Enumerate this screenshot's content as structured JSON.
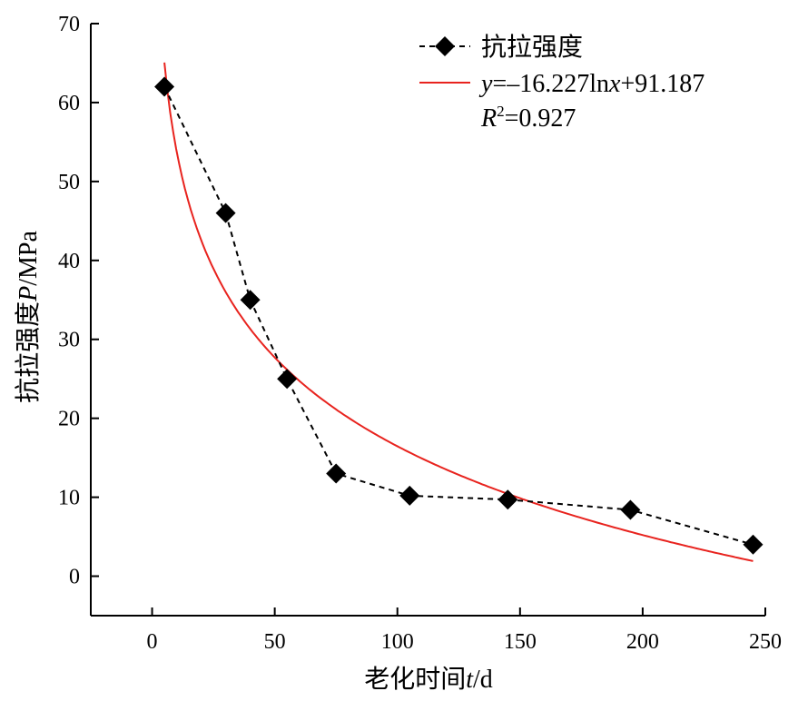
{
  "chart_data": {
    "type": "scatter",
    "xlabel": {
      "prefix": "老化时间",
      "var": "t",
      "unit": "/d"
    },
    "ylabel": {
      "prefix": "抗拉强度",
      "var": "P",
      "unit": "/MPa"
    },
    "xlim": [
      -25,
      250
    ],
    "ylim": [
      -5,
      70
    ],
    "xticks": [
      0,
      50,
      100,
      150,
      200,
      250
    ],
    "yticks": [
      0,
      10,
      20,
      30,
      40,
      50,
      60,
      70
    ],
    "grid": false,
    "legend_position": "top-right",
    "series": [
      {
        "name": "抗拉强度",
        "style": "dashed-line-diamond-markers",
        "color": "#000000",
        "x": [
          5,
          30,
          40,
          55,
          75,
          105,
          145,
          195,
          245
        ],
        "y": [
          62,
          46,
          35,
          25,
          13,
          10.2,
          9.7,
          8.4,
          4
        ]
      },
      {
        "name": "y=–16.227lnx+91.187",
        "style": "solid-fit-line",
        "color": "#e8231e",
        "fit": {
          "a": -16.227,
          "b": 91.187,
          "x_range": [
            5,
            245
          ]
        },
        "r2_label": "R²=0.927"
      }
    ],
    "legend": {
      "series1_label": "抗拉强度",
      "fit_y": "y",
      "fit_mid": "=–16.227ln",
      "fit_x": "x",
      "fit_tail": "+91.187",
      "r2_R": "R",
      "r2_sup": "2",
      "r2_tail": "=0.927"
    }
  }
}
